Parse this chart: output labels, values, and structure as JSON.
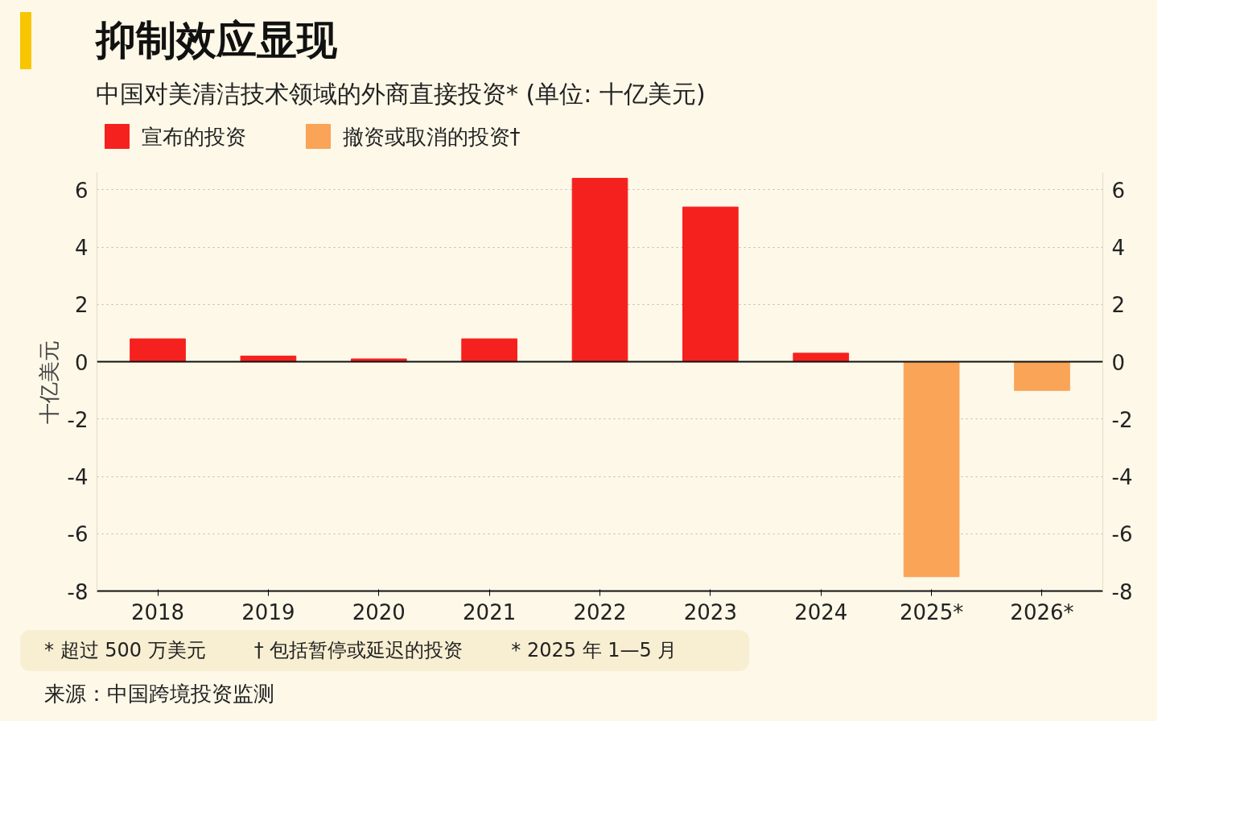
{
  "chart_data": {
    "type": "bar",
    "title": "抑制效应显现",
    "subtitle": "中国对美清洁技术领域的外商直接投资* (单位: 十亿美元)",
    "ylabel": "十亿美元",
    "categories": [
      "2018",
      "2019",
      "2020",
      "2021",
      "2022",
      "2023",
      "2024",
      "2025*",
      "2026*"
    ],
    "series": [
      {
        "name": "宣布的投资",
        "color": "#f5211e",
        "values": [
          0.8,
          0.2,
          0.1,
          0.8,
          6.4,
          5.4,
          0.3,
          null,
          null
        ]
      },
      {
        "name": "撤资或取消的投资†",
        "color": "#f9a457",
        "values": [
          null,
          null,
          null,
          null,
          null,
          null,
          null,
          -7.5,
          -1.0
        ]
      }
    ],
    "ylim": [
      -8,
      6.6
    ],
    "yticks": [
      -8,
      -6,
      -4,
      -2,
      0,
      2,
      4,
      6
    ],
    "y2lim": [
      -8,
      6.6
    ],
    "y2ticks": [
      -8,
      -6,
      -4,
      -2,
      0,
      2,
      4,
      6
    ],
    "grid": "y",
    "legend": "top left",
    "annotations": [
      "* 超过 500 万美元",
      "† 包括暂停或延迟的投资",
      "* 2025 年 1—5 月",
      "来源：中国跨境投资监测"
    ]
  }
}
